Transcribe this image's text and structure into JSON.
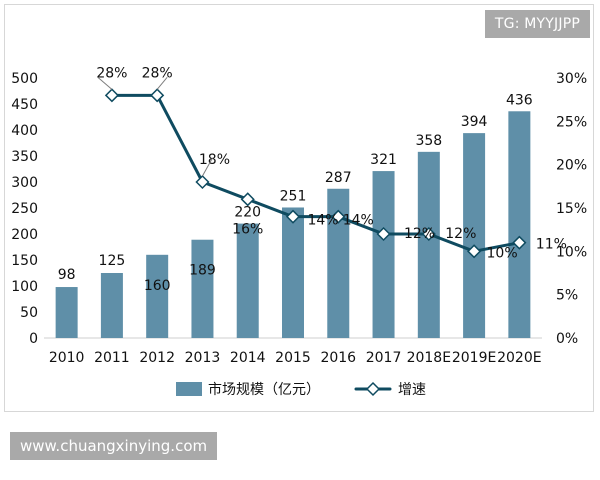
{
  "watermarks": {
    "top": "TG: MYYJJPP",
    "bottom": "www.chuangxinying.com"
  },
  "chart_data": {
    "type": "bar",
    "title": "",
    "xlabel": "",
    "ylabel": "",
    "categories": [
      "2010",
      "2011",
      "2012",
      "2013",
      "2014",
      "2015",
      "2016",
      "2017",
      "2018E",
      "2019E",
      "2020E"
    ],
    "series": [
      {
        "name": "市场规模（亿元）",
        "type": "bar",
        "values": [
          98,
          125,
          160,
          189,
          220,
          251,
          287,
          321,
          358,
          394,
          436
        ],
        "labels": [
          "98",
          "125",
          "160",
          "189",
          "220",
          "251",
          "287",
          "321",
          "358",
          "394",
          "436"
        ]
      },
      {
        "name": "增速",
        "type": "line",
        "values": [
          null,
          28,
          28,
          18,
          16,
          14,
          14,
          12,
          12,
          10,
          11
        ],
        "labels": [
          null,
          "28%",
          "28%",
          "18%",
          "16%",
          "14%",
          "14%",
          "12%",
          "12%",
          "10%",
          "11%"
        ]
      }
    ],
    "ylim": [
      0,
      500
    ],
    "y2lim": [
      0,
      30
    ],
    "yticks": [
      "0",
      "50",
      "100",
      "150",
      "200",
      "250",
      "300",
      "350",
      "400",
      "450",
      "500"
    ],
    "y2ticks": [
      "0%",
      "5%",
      "10%",
      "15%",
      "20%",
      "25%",
      "30%"
    ],
    "legend_position": "bottom",
    "colors": {
      "bars": "#5f8fa8",
      "line": "#0f4b60",
      "marker_fill": "#ffffff",
      "marker_stroke": "#0f4b60"
    }
  }
}
